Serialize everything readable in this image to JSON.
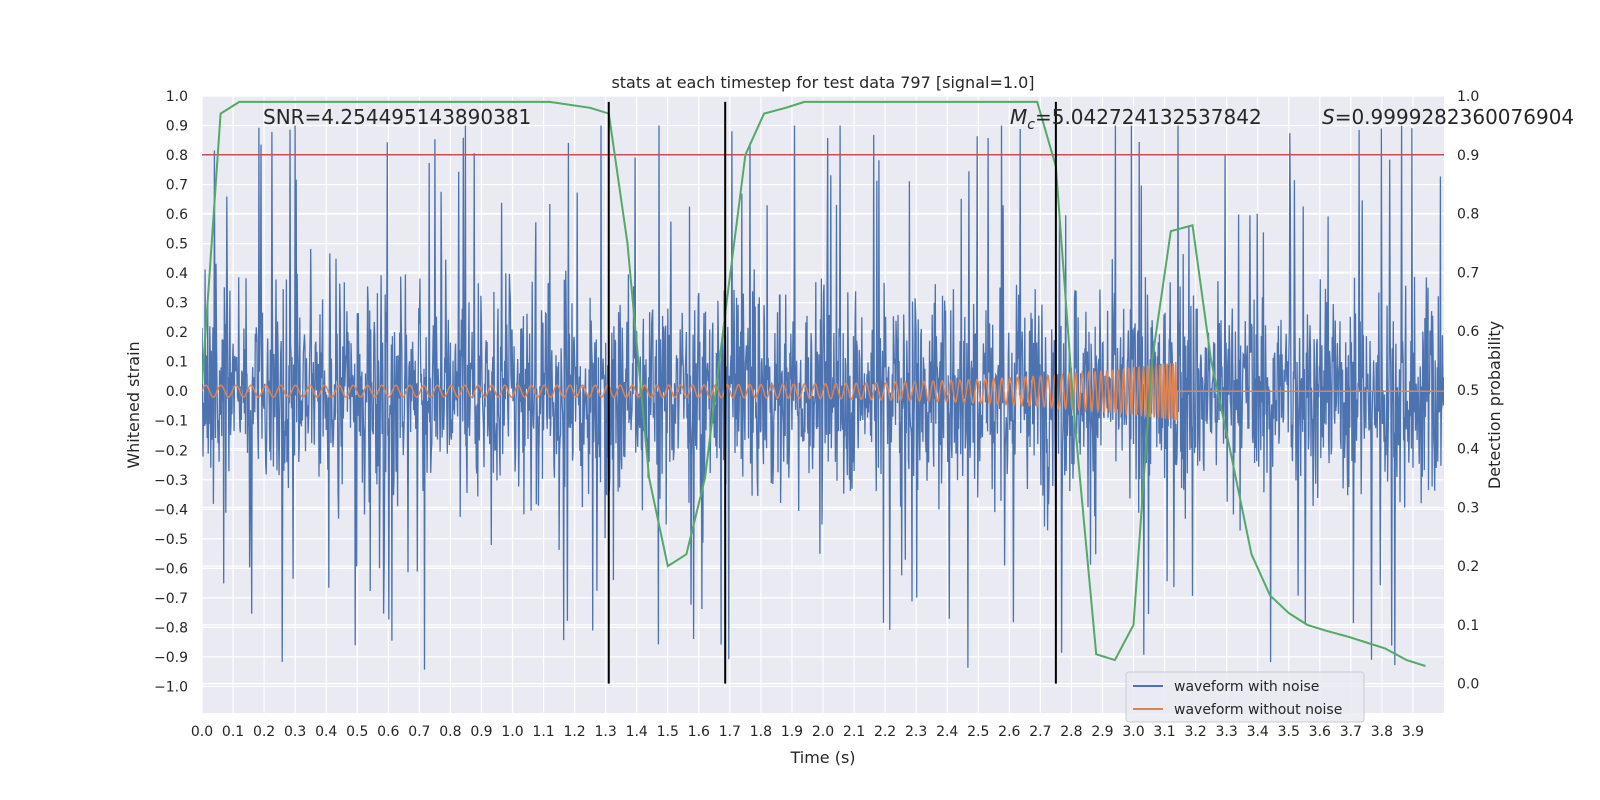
{
  "chart_data": {
    "type": "line",
    "title": "stats at each timestep for test data 797 [signal=1.0]",
    "xlabel": "Time (s)",
    "ylabel": "Whitened strain",
    "ylabel_right": "Detection probability",
    "xlim": [
      0.0,
      4.0
    ],
    "ylim": [
      -1.09,
      1.0
    ],
    "ylim_right": [
      -0.05,
      1.0
    ],
    "grid": true,
    "legend_position": "lower-right",
    "x_ticks": [
      "0.0",
      "0.1",
      "0.2",
      "0.3",
      "0.4",
      "0.5",
      "0.6",
      "0.7",
      "0.8",
      "0.9",
      "1.0",
      "1.1",
      "1.2",
      "1.3",
      "1.4",
      "1.5",
      "1.6",
      "1.7",
      "1.8",
      "1.9",
      "2.0",
      "2.1",
      "2.2",
      "2.3",
      "2.4",
      "2.5",
      "2.6",
      "2.7",
      "2.8",
      "2.9",
      "3.0",
      "3.1",
      "3.2",
      "3.3",
      "3.4",
      "3.5",
      "3.6",
      "3.7",
      "3.8",
      "3.9"
    ],
    "y_ticks": [
      "1.0",
      "0.9",
      "0.8",
      "0.7",
      "0.6",
      "0.5",
      "0.4",
      "0.3",
      "0.2",
      "0.1",
      "0.0",
      "−0.1",
      "−0.2",
      "−0.3",
      "−0.4",
      "−0.5",
      "−0.6",
      "−0.7",
      "−0.8",
      "−0.9",
      "−1.0"
    ],
    "y_ticks_right": [
      "1.0",
      "0.9",
      "0.8",
      "0.7",
      "0.6",
      "0.5",
      "0.4",
      "0.3",
      "0.2",
      "0.1",
      "0.0"
    ],
    "annotations": {
      "snr": "SNR=4.254495143890381",
      "mc_symbol": "M",
      "mc_sub": "c",
      "mc_value": "=5.042724132537842",
      "s_symbol": "S",
      "s_value": "=0.9999282360076904"
    },
    "series": [
      {
        "name": "waveform with noise",
        "color": "#4c72b0",
        "axis": "left",
        "description": "whitened strain noise, approx. uniform amplitude spanning about -1.0 to 0.9"
      },
      {
        "name": "waveform without noise",
        "color": "#dd8452",
        "axis": "left",
        "chirp": {
          "start": 0.0,
          "end": 3.14,
          "amp_start": 0.02,
          "amp_end": 0.1
        }
      },
      {
        "color": "#55a868",
        "axis": "right",
        "x": [
          0.0,
          0.06,
          0.12,
          0.25,
          0.5,
          0.75,
          1.0,
          1.12,
          1.25,
          1.31,
          1.37,
          1.44,
          1.5,
          1.56,
          1.62,
          1.69,
          1.75,
          1.81,
          1.88,
          1.94,
          2.06,
          2.19,
          2.31,
          2.44,
          2.56,
          2.69,
          2.75,
          2.81,
          2.88,
          2.94,
          3.0,
          3.06,
          3.12,
          3.19,
          3.25,
          3.31,
          3.38,
          3.44,
          3.5,
          3.56,
          3.62,
          3.69,
          3.75,
          3.81,
          3.88,
          3.94
        ],
        "y": [
          0.51,
          0.97,
          0.99,
          0.99,
          0.99,
          0.99,
          0.99,
          0.99,
          0.98,
          0.97,
          0.75,
          0.35,
          0.2,
          0.22,
          0.35,
          0.65,
          0.9,
          0.97,
          0.98,
          0.99,
          0.99,
          0.99,
          0.99,
          0.99,
          0.99,
          0.99,
          0.88,
          0.45,
          0.05,
          0.04,
          0.1,
          0.55,
          0.77,
          0.78,
          0.55,
          0.4,
          0.22,
          0.15,
          0.12,
          0.1,
          0.09,
          0.08,
          0.07,
          0.06,
          0.04,
          0.03
        ]
      },
      {
        "color": "#c44e52",
        "axis": "right",
        "type": "hline",
        "y": 0.9
      }
    ],
    "vlines": [
      1.31,
      1.685,
      2.75
    ]
  }
}
